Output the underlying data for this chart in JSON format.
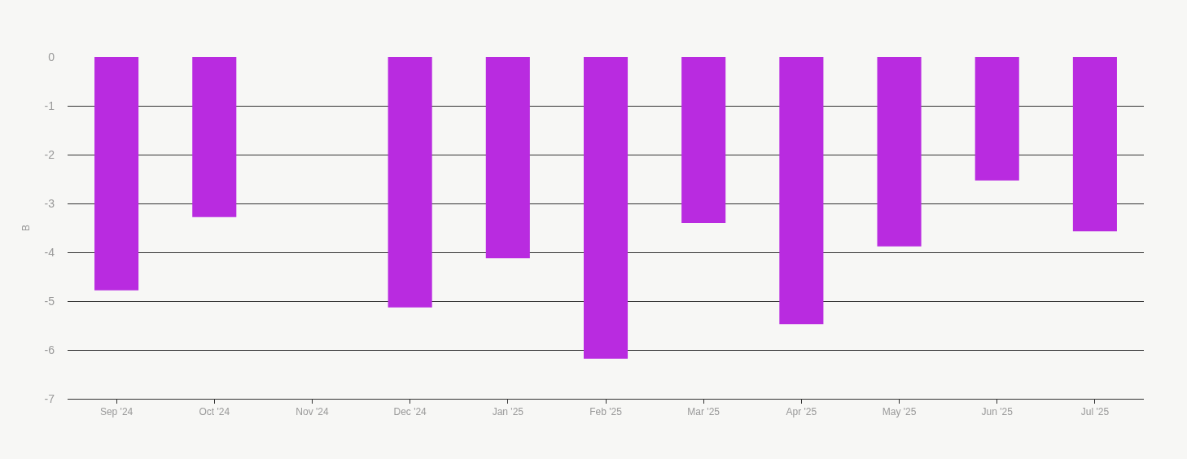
{
  "chart_data": {
    "type": "bar",
    "ylabel": "B",
    "categories": [
      "Sep '24",
      "Oct '24",
      "Nov '24",
      "Dec '24",
      "Jan '25",
      "Feb '25",
      "Mar '25",
      "Apr '25",
      "May '25",
      "Jun '25",
      "Jul '25"
    ],
    "series": [
      {
        "color": "#b92be0",
        "values": [
          -4.78,
          -3.28,
          null,
          -5.13,
          -4.12,
          -6.18,
          -3.4,
          -5.47,
          -3.88,
          -2.53,
          -3.57
        ]
      }
    ],
    "ylim": [
      -7,
      0
    ],
    "yticks": [
      0,
      -1,
      -2,
      -3,
      -4,
      -5,
      -6,
      -7
    ],
    "grid": "y",
    "legend": false
  }
}
